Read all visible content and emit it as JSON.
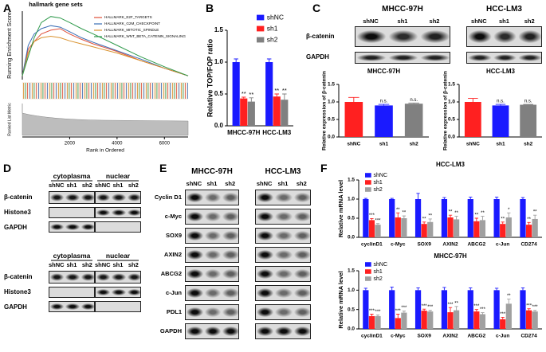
{
  "panel_labels": [
    "A",
    "B",
    "C",
    "D",
    "E",
    "F"
  ],
  "blots": {
    "c": {
      "cell_lines": [
        "MHCC-97H",
        "HCC-LM3"
      ],
      "lanes": [
        "shNC",
        "sh1",
        "sh2"
      ],
      "rows": [
        "β-catenin",
        "GAPDH"
      ]
    },
    "d": {
      "fractions": [
        "cytoplasma",
        "nuclear"
      ],
      "lanes": [
        "shNC",
        "sh1",
        "sh2"
      ],
      "rows": [
        "β-catenin",
        "Histone3",
        "GAPDH"
      ]
    },
    "e": {
      "cell_lines": [
        "MHCC-97H",
        "HCC-LM3"
      ],
      "lanes": [
        "shNC",
        "sh1",
        "sh2"
      ],
      "rows": [
        "Cyclin D1",
        "c-Myc",
        "SOX9",
        "AXIN2",
        "ABCG2",
        "c-Jun",
        "PDL1",
        "GAPDH"
      ]
    }
  },
  "chart_data": [
    {
      "type": "line",
      "title": "hallmark gene sets",
      "y_label": "Running Enrichment Score",
      "metric_label": "Ranked List Metric",
      "x_label": "Rank in Ordered",
      "x": [
        0,
        250,
        500,
        800,
        1200,
        1600,
        2000,
        2500,
        3000,
        4000,
        5000,
        6000,
        7000
      ],
      "xlim": [
        0,
        7000
      ],
      "xticks": [
        2000,
        4000,
        6000
      ],
      "ylim": [
        -0.05,
        0.85
      ],
      "legend": "upper right",
      "series": [
        {
          "name": "HALLMARK_E2F_TARGETS",
          "color": "#e0503a",
          "values": [
            0,
            0.35,
            0.45,
            0.55,
            0.6,
            0.62,
            0.55,
            0.48,
            0.42,
            0.32,
            0.2,
            0.1,
            0
          ]
        },
        {
          "name": "HALLMARK_G2M_CHECKPOINT",
          "color": "#3a6db5",
          "values": [
            0,
            0.4,
            0.55,
            0.62,
            0.66,
            0.64,
            0.58,
            0.5,
            0.44,
            0.33,
            0.22,
            0.1,
            0
          ]
        },
        {
          "name": "HALLMARK_MITOTIC_SPINDLE",
          "color": "#d9912c",
          "values": [
            0,
            0.3,
            0.45,
            0.5,
            0.52,
            0.5,
            0.46,
            0.42,
            0.38,
            0.3,
            0.2,
            0.1,
            0
          ]
        },
        {
          "name": "HALLMARK_WNT_BETA_CATENIN_SIGNALING",
          "color": "#2f9a4c",
          "values": [
            0,
            0.25,
            0.5,
            0.7,
            0.78,
            0.76,
            0.7,
            0.62,
            0.55,
            0.4,
            0.25,
            0.12,
            0
          ]
        }
      ]
    },
    {
      "type": "bar",
      "y_label": "Relative TOP/FOP ratio",
      "categories": [
        "MHCC-97H",
        "HCC-LM3"
      ],
      "ylim": [
        0,
        1.5
      ],
      "yticks": [
        {
          "value": 0,
          "label": "0.0"
        },
        0.5,
        {
          "value": 1,
          "label": "1.0"
        },
        1.5
      ],
      "legend": "right",
      "series": [
        {
          "name": "shNC",
          "color": "#1a1aff",
          "values": [
            1.0,
            1.0
          ],
          "errors": [
            0.05,
            0.05
          ]
        },
        {
          "name": "sh1",
          "color": "#ff2020",
          "values": [
            0.43,
            0.46
          ],
          "errors": [
            0.02,
            0.04
          ],
          "significance": [
            "**",
            "**"
          ]
        },
        {
          "name": "sh2",
          "color": "#808080",
          "values": [
            0.38,
            0.41
          ],
          "errors": [
            0.06,
            0.09
          ],
          "significance": [
            "**",
            "**"
          ]
        }
      ]
    },
    {
      "type": "bar",
      "title": "MHCC-97H",
      "y_label": "Relative expression of β-catenin",
      "categories": [
        "shNC",
        "sh1",
        "sh2"
      ],
      "colors": [
        "#ff2020",
        "#1a1aff",
        "#808080"
      ],
      "values": [
        1.0,
        0.9,
        0.95
      ],
      "errors": [
        0.13,
        0.03,
        0.02
      ],
      "significance": [
        null,
        "n.s.",
        "n.s."
      ],
      "ylim": [
        0,
        1.5
      ],
      "yticks": [
        {
          "value": 0,
          "label": "0.0"
        },
        0.5,
        {
          "value": 1,
          "label": "1.0"
        },
        1.5
      ]
    },
    {
      "type": "bar",
      "title": "HCC-LM3",
      "y_label": "Relative expression of β-catenin",
      "categories": [
        "shNC",
        "sh1",
        "sh2"
      ],
      "colors": [
        "#ff2020",
        "#1a1aff",
        "#808080"
      ],
      "values": [
        1.0,
        0.9,
        0.92
      ],
      "errors": [
        0.1,
        0.03,
        0.01
      ],
      "significance": [
        null,
        "n.s.",
        "n.s."
      ],
      "ylim": [
        0,
        1.5
      ],
      "yticks": [
        {
          "value": 0,
          "label": "0.0"
        },
        0.5,
        {
          "value": 1,
          "label": "1.0"
        },
        1.5
      ]
    },
    {
      "type": "bar",
      "title": "HCC-LM3",
      "y_label": "Relative mRNA level",
      "categories": [
        "cyclinD1",
        "c-Myc",
        "SOX9",
        "AXIN2",
        "ABCG2",
        "c-Jun",
        "CD274"
      ],
      "ylim": [
        0,
        1.5
      ],
      "yticks": [
        {
          "value": 0,
          "label": "0.0"
        },
        0.5,
        {
          "value": 1,
          "label": "1.0"
        },
        1.5
      ],
      "legend": "upper left",
      "series": [
        {
          "name": "shNC",
          "color": "#1a1aff",
          "values": [
            1,
            1,
            1,
            1,
            1,
            1,
            1
          ],
          "errors": [
            0.02,
            0.02,
            0.15,
            0.04,
            0.05,
            0.05,
            0.04
          ]
        },
        {
          "name": "sh1",
          "color": "#ff2020",
          "values": [
            0.45,
            0.52,
            0.35,
            0.52,
            0.42,
            0.35,
            0.33
          ],
          "errors": [
            0.04,
            0.12,
            0.05,
            0.06,
            0.08,
            0.05,
            0.06
          ],
          "significance": [
            "***",
            "**",
            "**",
            "**",
            "**",
            "**",
            "**"
          ]
        },
        {
          "name": "sh2",
          "color": "#a0a0a0",
          "values": [
            0.33,
            0.5,
            0.4,
            0.47,
            0.45,
            0.52,
            0.48
          ],
          "errors": [
            0.03,
            0.06,
            0.08,
            0.08,
            0.1,
            0.12,
            0.1
          ],
          "significance": [
            "***",
            "**",
            "**",
            "**",
            "**",
            "*",
            "**"
          ]
        }
      ]
    },
    {
      "type": "bar",
      "title": "MHCC-97H",
      "y_label": "Relative mRNA level",
      "categories": [
        "cyclinD1",
        "c-Myc",
        "SOX9",
        "AXIN2",
        "ABCG2",
        "c-Jun",
        "CD274"
      ],
      "ylim": [
        0,
        1.5
      ],
      "yticks": [
        {
          "value": 0,
          "label": "0.0"
        },
        0.5,
        {
          "value": 1,
          "label": "1.0"
        },
        1.5
      ],
      "legend": "upper left",
      "series": [
        {
          "name": "shNC",
          "color": "#1a1aff",
          "values": [
            1,
            1,
            1,
            1,
            1,
            1,
            1
          ],
          "errors": [
            0.05,
            0.08,
            0.06,
            0.07,
            0.06,
            0.05,
            0.06
          ]
        },
        {
          "name": "sh1",
          "color": "#ff2020",
          "values": [
            0.33,
            0.28,
            0.47,
            0.43,
            0.45,
            0.25,
            0.48
          ],
          "errors": [
            0.05,
            0.1,
            0.04,
            0.12,
            0.05,
            0.05,
            0.04
          ],
          "significance": [
            "***",
            "***",
            "***",
            "***",
            "***",
            "***",
            "***"
          ]
        },
        {
          "name": "sh2",
          "color": "#a0a0a0",
          "values": [
            0.33,
            0.42,
            0.45,
            0.48,
            0.38,
            0.65,
            0.45
          ],
          "errors": [
            0.03,
            0.04,
            0.03,
            0.1,
            0.04,
            0.12,
            0.03
          ],
          "significance": [
            "***",
            "***",
            "***",
            "**",
            "***",
            "**",
            "***"
          ]
        }
      ]
    }
  ]
}
